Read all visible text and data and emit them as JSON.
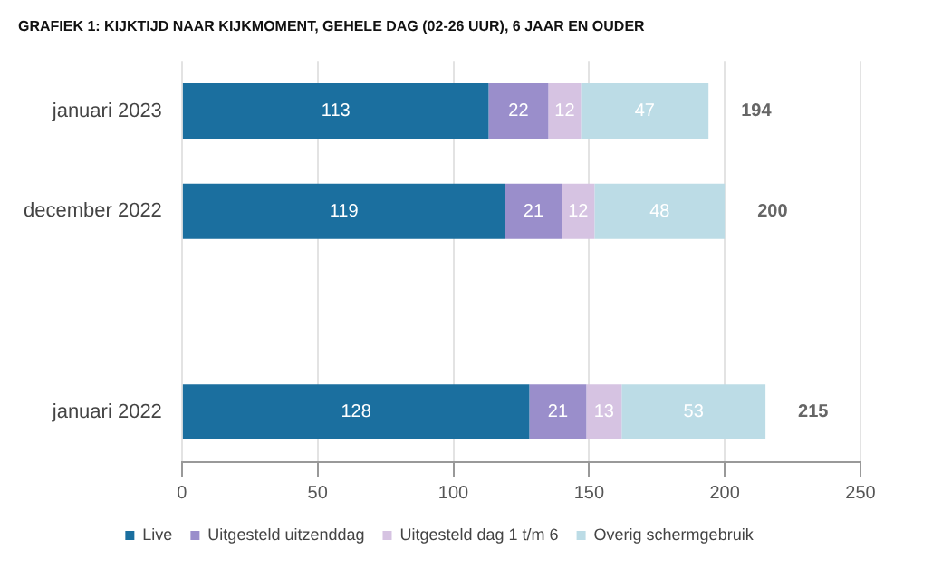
{
  "chart_data": {
    "type": "bar",
    "orientation": "horizontal",
    "stacked": true,
    "title": "GRAFIEK 1: KIJKTIJD NAAR KIJKMOMENT, GEHELE DAG (02-26 UUR), 6 JAAR EN OUDER",
    "categories": [
      "januari 2023",
      "december 2022",
      null,
      "januari 2022"
    ],
    "series": [
      {
        "name": "Live",
        "color": "#1b6f9f",
        "values": [
          113,
          119,
          null,
          128
        ]
      },
      {
        "name": "Uitgesteld uitzenddag",
        "color": "#9a8ecb",
        "values": [
          22,
          21,
          null,
          21
        ]
      },
      {
        "name": "Uitgesteld dag 1 t/m 6",
        "color": "#d6c3e2",
        "values": [
          12,
          12,
          null,
          13
        ]
      },
      {
        "name": "Overig schermgebruik",
        "color": "#bcdce6",
        "values": [
          47,
          48,
          null,
          53
        ]
      }
    ],
    "totals": [
      "194",
      "200",
      null,
      "215"
    ],
    "data_labels": true,
    "xlim": [
      0,
      250
    ],
    "xticks": [
      0,
      50,
      100,
      150,
      200,
      250
    ],
    "grid": "x",
    "legend": "bottom"
  }
}
